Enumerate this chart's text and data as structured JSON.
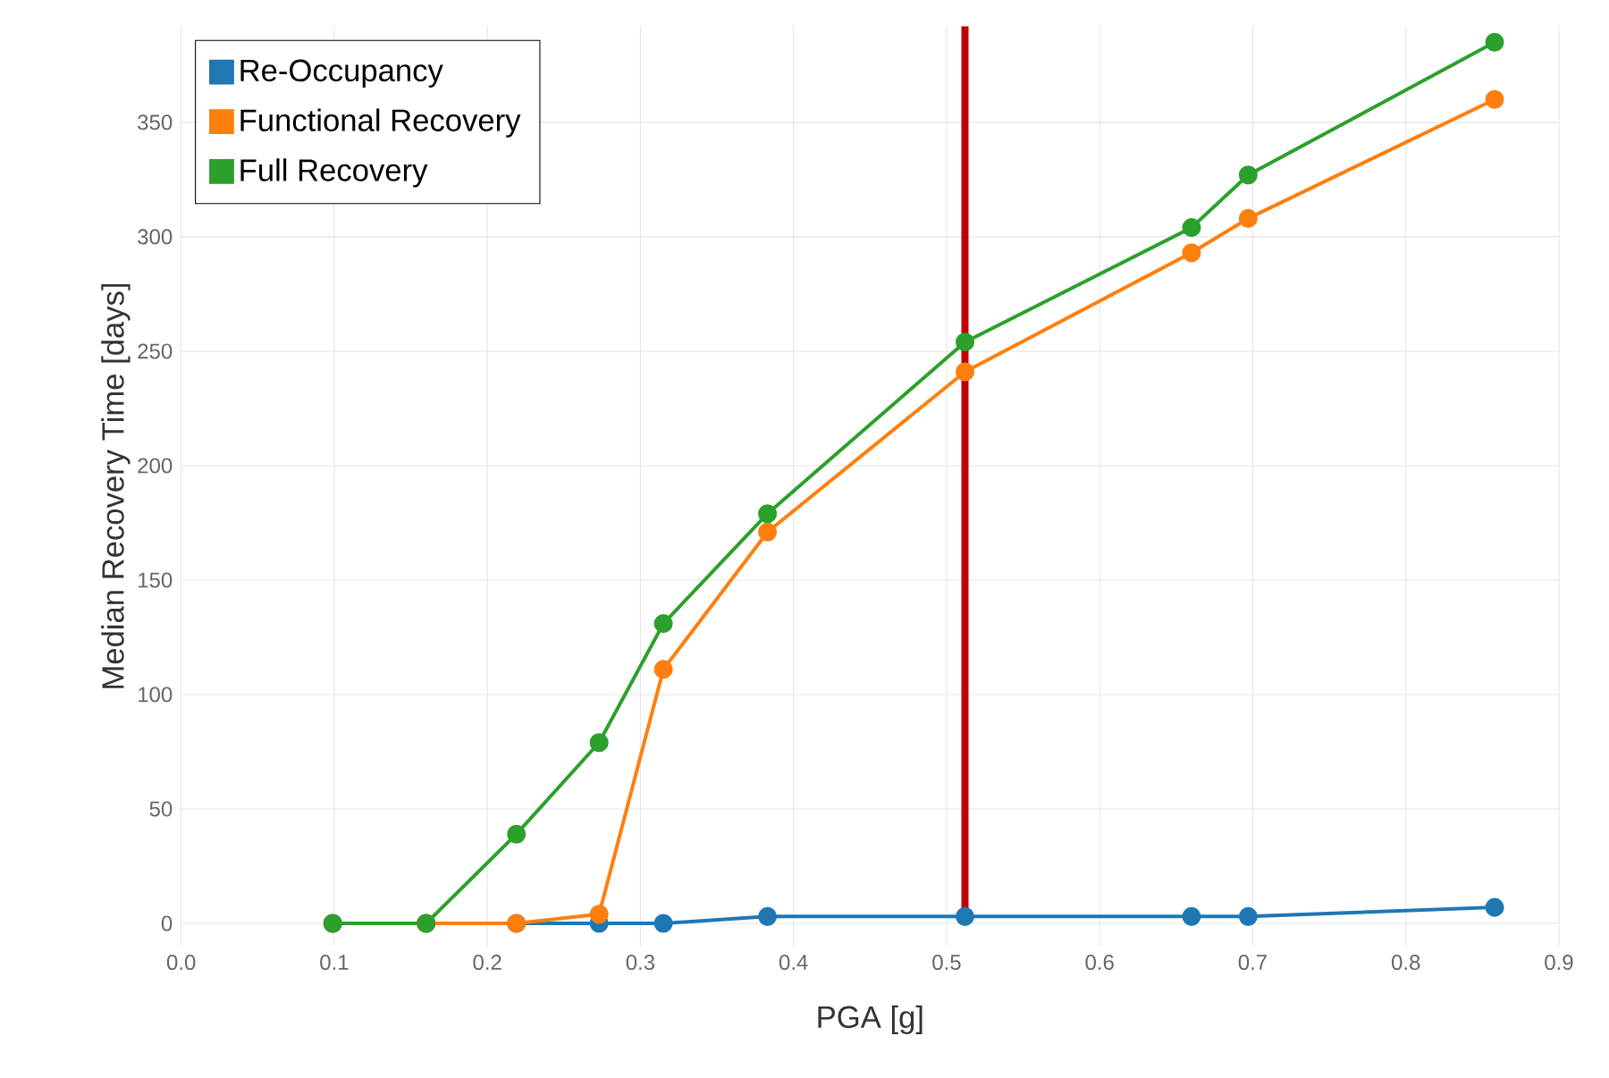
{
  "chart_data": {
    "type": "line",
    "xlabel": "PGA [g]",
    "ylabel": "Median Recovery Time [days]",
    "x": [
      0.099,
      0.16,
      0.219,
      0.273,
      0.315,
      0.383,
      0.512,
      0.66,
      0.697,
      0.858
    ],
    "series": [
      {
        "name": "Re-Occupancy",
        "color": "#1f77b4",
        "values": [
          0,
          0,
          0,
          0,
          0,
          3,
          3,
          3,
          3,
          7
        ]
      },
      {
        "name": "Functional Recovery",
        "color": "#ff7f0e",
        "values": [
          0,
          0,
          0,
          4,
          111,
          171,
          241,
          293,
          308,
          360
        ]
      },
      {
        "name": "Full Recovery",
        "color": "#2ca02c",
        "values": [
          0,
          0,
          39,
          79,
          131,
          179,
          254,
          304,
          327,
          385
        ]
      }
    ],
    "xlim": [
      0,
      0.9
    ],
    "ylim": [
      -10,
      392
    ],
    "xticks": [
      {
        "value": 0,
        "label": "0.0"
      },
      {
        "value": 0.1,
        "label": "0.1"
      },
      {
        "value": 0.2,
        "label": "0.2"
      },
      {
        "value": 0.3,
        "label": "0.3"
      },
      {
        "value": 0.4,
        "label": "0.4"
      },
      {
        "value": 0.5,
        "label": "0.5"
      },
      {
        "value": 0.6,
        "label": "0.6"
      },
      {
        "value": 0.7,
        "label": "0.7"
      },
      {
        "value": 0.8,
        "label": "0.8"
      },
      {
        "value": 0.9,
        "label": "0.9"
      }
    ],
    "yticks": [
      0,
      50,
      100,
      150,
      200,
      250,
      300,
      350
    ],
    "ref_lines": [
      {
        "axis": "x",
        "value": 0.512,
        "color": "#c00000"
      }
    ],
    "grid": true,
    "legend": "top left",
    "marker": "circle",
    "line_style": "solid"
  }
}
